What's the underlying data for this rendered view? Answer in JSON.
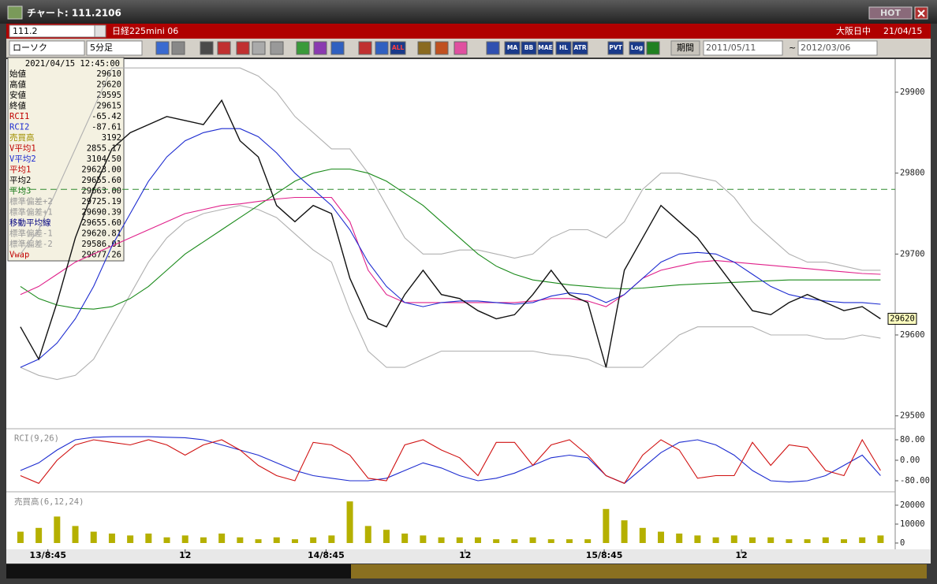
{
  "window": {
    "title": "チャート: 111.2106",
    "badge": "HOT"
  },
  "header": {
    "code": "111.2",
    "instrument": "日経225mini 06",
    "session": "大阪日中",
    "date": "21/04/15"
  },
  "toolbar": {
    "chart_style": "ローソク",
    "interval": "5分足",
    "period_label": "期間",
    "from": "2011/05/11",
    "to": "2012/03/06",
    "buttons": [
      "ALL",
      "MA",
      "BB",
      "MAE",
      "HL",
      "ATR",
      "PVT",
      "Log"
    ]
  },
  "info_panel": {
    "timestamp": "2021/04/15  12:45:00",
    "rows": [
      [
        "始値",
        "29610"
      ],
      [
        "高値",
        "29620"
      ],
      [
        "安値",
        "29595"
      ],
      [
        "終値",
        "29615"
      ],
      [
        "RCI1",
        "-65.42"
      ],
      [
        "RCI2",
        "-87.61"
      ],
      [
        "売買高",
        "3192"
      ],
      [
        "V平均1",
        "2855.17"
      ],
      [
        "V平均2",
        "3104.50"
      ],
      [
        "平均1",
        "29623.00"
      ],
      [
        "平均2",
        "29655.60"
      ],
      [
        "平均3",
        "29663.00"
      ],
      [
        "標準偏差+2",
        "29725.19"
      ],
      [
        "標準偏差+1",
        "29690.39"
      ],
      [
        "移動平均線",
        "29655.60"
      ],
      [
        "標準偏差-1",
        "29620.81"
      ],
      [
        "標準偏差-2",
        "29586.01"
      ],
      [
        "Vwap",
        "29677.26"
      ]
    ]
  },
  "chart_data": [
    {
      "type": "line",
      "x": [
        0,
        1,
        2,
        3,
        4,
        5,
        6,
        7,
        8,
        9,
        10,
        11,
        12,
        13,
        14,
        15,
        16,
        17,
        18,
        19,
        20,
        21,
        22,
        23,
        24,
        25,
        26,
        27,
        28,
        29,
        30,
        31,
        32,
        33,
        34,
        35,
        36,
        37,
        38,
        39,
        40,
        41,
        42,
        43,
        44,
        45,
        46,
        47
      ],
      "xlim": [
        -0.6,
        47.5
      ],
      "ylim": [
        29488,
        29938
      ],
      "yticks": [
        29500,
        29600,
        29700,
        29800,
        29900
      ],
      "reference_line": {
        "value": 29780,
        "color": "#2e8b2e"
      },
      "last_price": 29620,
      "series": [
        {
          "color": "#b0b0b0",
          "values": [
            29700,
            29730,
            29780,
            29830,
            29880,
            29930,
            29930,
            29930,
            29930,
            29930,
            29930,
            29930,
            29930,
            29920,
            29900,
            29870,
            29850,
            29830,
            29830,
            29800,
            29760,
            29720,
            29700,
            29700,
            29705,
            29705,
            29700,
            29695,
            29700,
            29720,
            29730,
            29730,
            29720,
            29740,
            29780,
            29800,
            29800,
            29795,
            29790,
            29770,
            29740,
            29720,
            29700,
            29690,
            29690,
            29685,
            29680,
            29680
          ]
        },
        {
          "color": "#b0b0b0",
          "values": [
            29560,
            29550,
            29545,
            29550,
            29570,
            29610,
            29650,
            29690,
            29720,
            29740,
            29750,
            29755,
            29760,
            29755,
            29745,
            29725,
            29705,
            29690,
            29630,
            29580,
            29560,
            29560,
            29570,
            29580,
            29580,
            29580,
            29580,
            29580,
            29580,
            29576,
            29574,
            29570,
            29560,
            29560,
            29560,
            29580,
            29600,
            29610,
            29610,
            29610,
            29610,
            29600,
            29600,
            29600,
            29595,
            29595,
            29600,
            29596
          ]
        },
        {
          "color": "#1a8a1a",
          "values": [
            29660,
            29645,
            29637,
            29633,
            29632,
            29635,
            29645,
            29660,
            29680,
            29700,
            29715,
            29730,
            29745,
            29760,
            29775,
            29790,
            29800,
            29805,
            29805,
            29800,
            29790,
            29775,
            29760,
            29740,
            29720,
            29700,
            29685,
            29675,
            29668,
            29665,
            29662,
            29660,
            29658,
            29657,
            29658,
            29660,
            29662,
            29663,
            29664,
            29665,
            29666,
            29667,
            29668,
            29668,
            29668,
            29668,
            29668,
            29668
          ]
        },
        {
          "color": "#e0208a",
          "values": [
            29650,
            29660,
            29675,
            29690,
            29700,
            29710,
            29720,
            29730,
            29740,
            29750,
            29755,
            29760,
            29762,
            29765,
            29768,
            29770,
            29770,
            29770,
            29740,
            29680,
            29650,
            29640,
            29640,
            29640,
            29640,
            29640,
            29640,
            29640,
            29642,
            29645,
            29645,
            29642,
            29635,
            29650,
            29670,
            29680,
            29685,
            29690,
            29692,
            29690,
            29688,
            29686,
            29684,
            29682,
            29680,
            29678,
            29676,
            29675
          ]
        },
        {
          "color": "#1c2bd0",
          "values": [
            29560,
            29570,
            29590,
            29620,
            29660,
            29710,
            29750,
            29790,
            29820,
            29840,
            29850,
            29855,
            29855,
            29845,
            29825,
            29800,
            29780,
            29760,
            29730,
            29690,
            29660,
            29640,
            29635,
            29640,
            29642,
            29642,
            29640,
            29638,
            29640,
            29648,
            29652,
            29650,
            29640,
            29650,
            29670,
            29690,
            29700,
            29702,
            29700,
            29690,
            29675,
            29660,
            29650,
            29645,
            29642,
            29640,
            29640,
            29638
          ]
        },
        {
          "color": "#111111",
          "values": [
            29610,
            29570,
            29640,
            29720,
            29780,
            29830,
            29850,
            29860,
            29870,
            29865,
            29860,
            29890,
            29840,
            29820,
            29760,
            29740,
            29760,
            29750,
            29670,
            29620,
            29610,
            29650,
            29680,
            29650,
            29645,
            29630,
            29620,
            29625,
            29650,
            29680,
            29650,
            29640,
            29560,
            29680,
            29720,
            29760,
            29740,
            29720,
            29690,
            29660,
            29630,
            29625,
            29640,
            29650,
            29640,
            29630,
            29635,
            29620
          ]
        }
      ]
    },
    {
      "type": "line",
      "title": "RCI(9,26)",
      "x": [
        0,
        1,
        2,
        3,
        4,
        5,
        6,
        7,
        8,
        9,
        10,
        11,
        12,
        13,
        14,
        15,
        16,
        17,
        18,
        19,
        20,
        21,
        22,
        23,
        24,
        25,
        26,
        27,
        28,
        29,
        30,
        31,
        32,
        33,
        34,
        35,
        36,
        37,
        38,
        39,
        40,
        41,
        42,
        43,
        44,
        45,
        46,
        47
      ],
      "xlim": [
        -0.6,
        47.5
      ],
      "ylim": [
        -110,
        110
      ],
      "yticks": [
        {
          "value": 80,
          "label": "80.00"
        },
        {
          "value": 0,
          "label": "0.00"
        },
        {
          "value": -80,
          "label": "-80.00"
        }
      ],
      "series": [
        {
          "color": "#1c2bd0",
          "values": [
            -40,
            -10,
            40,
            80,
            90,
            92,
            92,
            92,
            90,
            88,
            80,
            60,
            40,
            20,
            -10,
            -40,
            -60,
            -70,
            -80,
            -80,
            -70,
            -40,
            -10,
            -30,
            -60,
            -80,
            -70,
            -50,
            -20,
            10,
            20,
            10,
            -60,
            -90,
            -30,
            30,
            70,
            80,
            60,
            20,
            -40,
            -80,
            -85,
            -80,
            -60,
            -20,
            20,
            -60
          ]
        },
        {
          "color": "#d01010",
          "values": [
            -60,
            -90,
            0,
            60,
            80,
            70,
            60,
            80,
            60,
            20,
            60,
            80,
            40,
            -20,
            -60,
            -80,
            70,
            60,
            20,
            -70,
            -80,
            60,
            80,
            40,
            10,
            -60,
            70,
            70,
            -20,
            60,
            80,
            20,
            -60,
            -90,
            20,
            80,
            40,
            -70,
            -60,
            -60,
            70,
            -20,
            60,
            50,
            -40,
            -60,
            80,
            -40
          ]
        }
      ]
    },
    {
      "type": "bar",
      "title": "売買高(6,12,24)",
      "color": "#b5b000",
      "x": [
        0,
        1,
        2,
        3,
        4,
        5,
        6,
        7,
        8,
        9,
        10,
        11,
        12,
        13,
        14,
        15,
        16,
        17,
        18,
        19,
        20,
        21,
        22,
        23,
        24,
        25,
        26,
        27,
        28,
        29,
        30,
        31,
        32,
        33,
        34,
        35,
        36,
        37,
        38,
        39,
        40,
        41,
        42,
        43,
        44,
        45,
        46,
        47
      ],
      "xlim": [
        -0.6,
        47.5
      ],
      "ylim": [
        0,
        25000
      ],
      "yticks": [
        0,
        10000,
        20000
      ],
      "xticks": [
        {
          "value": 1.5,
          "label": "13/8:45"
        },
        {
          "value": 9,
          "label": "12"
        },
        {
          "value": 16.7,
          "label": "14/8:45"
        },
        {
          "value": 24.3,
          "label": "12"
        },
        {
          "value": 31.9,
          "label": "15/8:45"
        },
        {
          "value": 39.4,
          "label": "12"
        }
      ],
      "values": [
        6000,
        8000,
        14000,
        9000,
        6000,
        5000,
        4000,
        5000,
        3000,
        4000,
        3000,
        5000,
        3000,
        2000,
        3000,
        2000,
        3000,
        4000,
        22000,
        9000,
        7000,
        5000,
        4000,
        3000,
        3000,
        3000,
        2000,
        2000,
        3000,
        2000,
        2000,
        2000,
        18000,
        12000,
        8000,
        6000,
        5000,
        4000,
        3000,
        4000,
        3000,
        3000,
        2000,
        2000,
        3000,
        2000,
        3000,
        4000
      ]
    }
  ]
}
